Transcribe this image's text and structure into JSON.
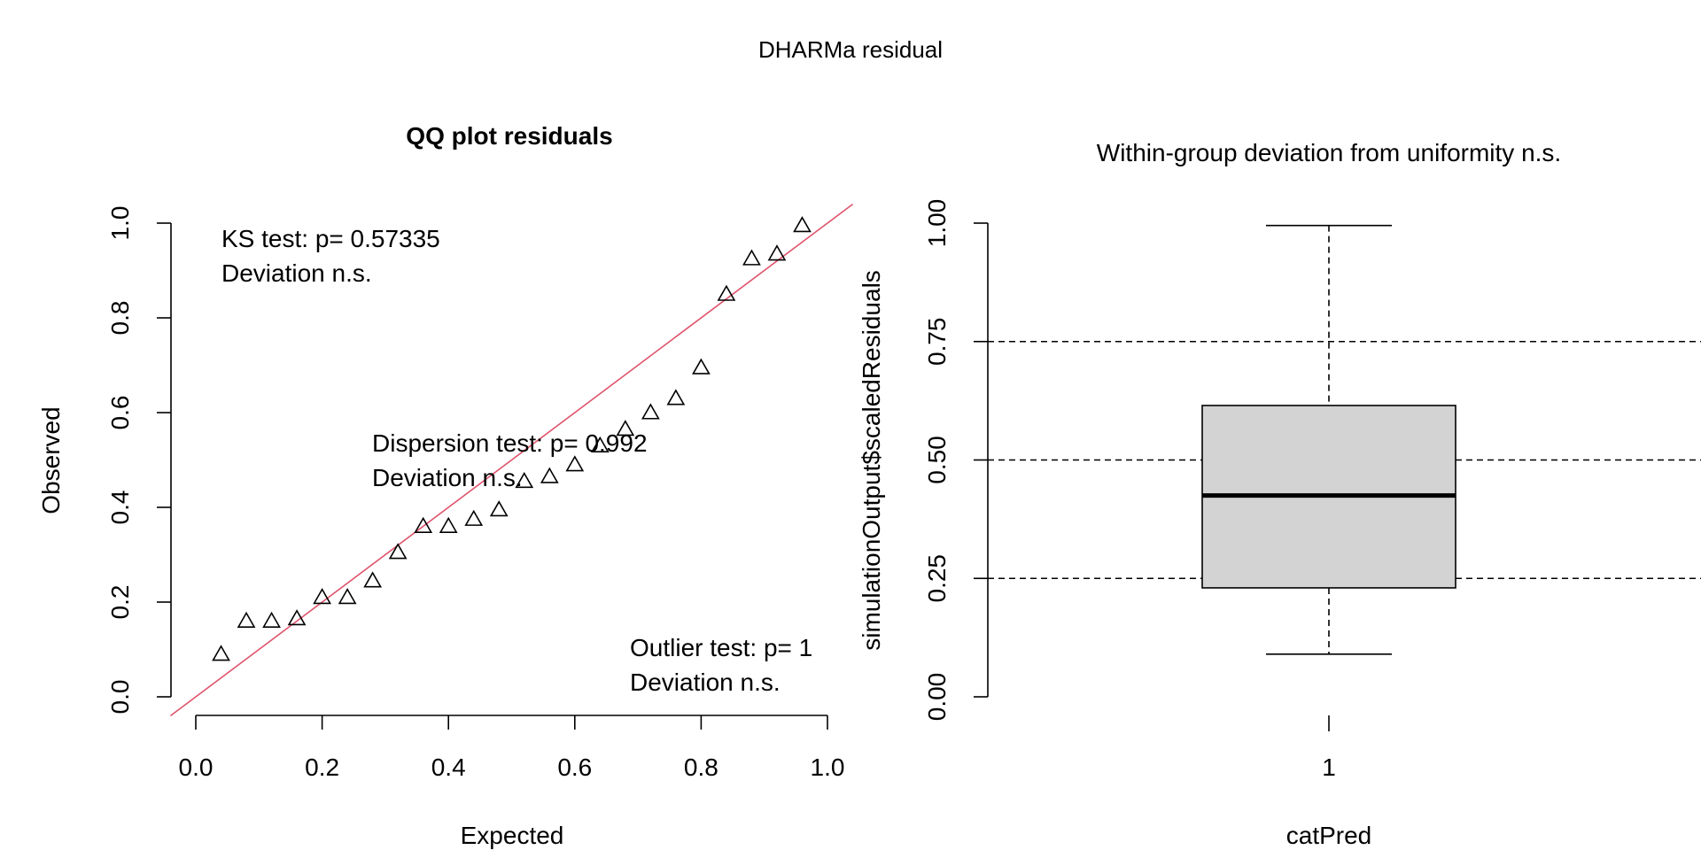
{
  "page_title": "DHARMa residual",
  "colors": {
    "reference_line": "#DF536B",
    "box_fill": "#D3D3D3",
    "ink": "#000000"
  },
  "qq": {
    "title": "QQ plot residuals",
    "ks_line1": "KS test: p= 0.57335",
    "ks_line2": "Deviation  n.s.",
    "disp_line1": "Dispersion test: p= 0.992",
    "disp_line2": "Deviation  n.s.",
    "out_line1": "Outlier test: p= 1",
    "out_line2": "Deviation  n.s."
  },
  "box": {
    "title": "Within-group deviation from uniformity n.s."
  },
  "chart_data": [
    {
      "type": "scatter",
      "title": "QQ plot residuals",
      "xlabel": "Expected",
      "ylabel": "Observed",
      "xlim": [
        0,
        1
      ],
      "ylim": [
        0,
        1
      ],
      "x_ticks": [
        "0.0",
        "0.2",
        "0.4",
        "0.6",
        "0.8",
        "1.0"
      ],
      "y_ticks": [
        "0.0",
        "0.2",
        "0.4",
        "0.6",
        "0.8",
        "1.0"
      ],
      "marker": "open-triangle",
      "reference_line": "y = x",
      "points": {
        "x": [
          0.04,
          0.08,
          0.12,
          0.16,
          0.2,
          0.24,
          0.28,
          0.32,
          0.36,
          0.4,
          0.44,
          0.48,
          0.52,
          0.56,
          0.6,
          0.64,
          0.68,
          0.72,
          0.76,
          0.8,
          0.84,
          0.88,
          0.92,
          0.96
        ],
        "y": [
          0.09,
          0.16,
          0.16,
          0.165,
          0.21,
          0.21,
          0.245,
          0.305,
          0.36,
          0.36,
          0.375,
          0.395,
          0.455,
          0.465,
          0.49,
          0.53,
          0.565,
          0.6,
          0.63,
          0.695,
          0.85,
          0.925,
          0.935,
          0.995
        ]
      }
    },
    {
      "type": "box",
      "title": "Within-group deviation from uniformity n.s.",
      "xlabel": "catPred",
      "ylabel": "simulationOutput$scaledResiduals",
      "categories": [
        "1"
      ],
      "ylim": [
        0,
        1
      ],
      "y_ticks": [
        "0.00",
        "0.25",
        "0.50",
        "0.75",
        "1.00"
      ],
      "reference_lines": [
        0.25,
        0.5,
        0.75
      ],
      "boxes": [
        {
          "category": "1",
          "whisker_low": 0.09,
          "q1": 0.23,
          "median": 0.425,
          "q3": 0.615,
          "whisker_high": 0.995
        }
      ]
    }
  ]
}
